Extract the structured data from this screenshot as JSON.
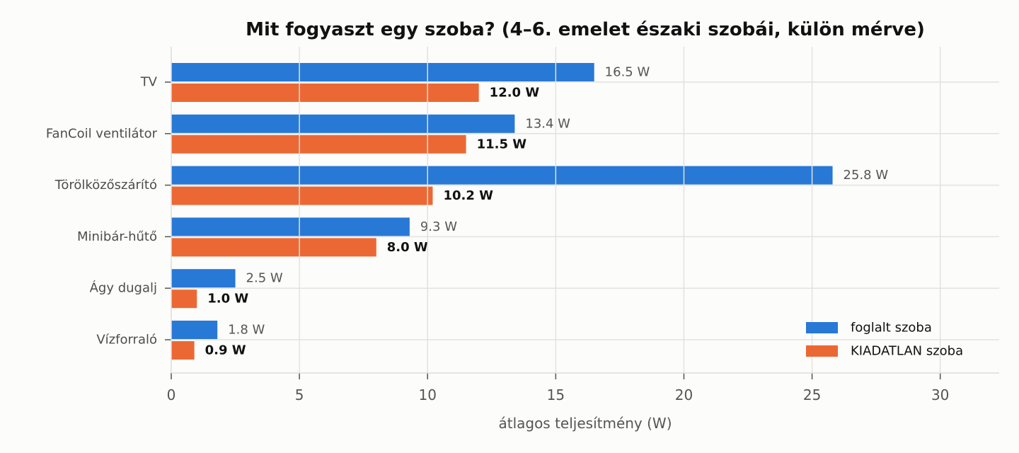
{
  "chart_data": {
    "type": "bar",
    "orientation": "horizontal",
    "title": "Mit fogyaszt egy szoba? (4–6. emelet északi szobái, külön mérve)",
    "xlabel": "átlagos teljesítmény (W)",
    "ylabel": "",
    "xlim": [
      0,
      32.3
    ],
    "xticks": [
      0,
      5,
      10,
      15,
      20,
      25,
      30
    ],
    "grid": true,
    "legend_position": "lower-right",
    "value_suffix": " W",
    "categories": [
      "TV",
      "FanCoil ventilátor",
      "Törölközőszárító",
      "Minibár-hűtő",
      "Ágy dugalj",
      "Vízforraló"
    ],
    "series": [
      {
        "name": "foglalt szoba",
        "color": "#2878d6",
        "values": [
          16.5,
          13.4,
          25.8,
          9.3,
          2.5,
          1.8
        ]
      },
      {
        "name": "KIADATLAN szoba",
        "color": "#eb6834",
        "values": [
          12.0,
          11.5,
          10.2,
          8.0,
          1.0,
          0.9
        ]
      }
    ]
  }
}
